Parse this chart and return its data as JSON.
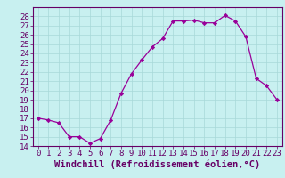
{
  "hours": [
    0,
    1,
    2,
    3,
    4,
    5,
    6,
    7,
    8,
    9,
    10,
    11,
    12,
    13,
    14,
    15,
    16,
    17,
    18,
    19,
    20,
    21,
    22,
    23
  ],
  "windchill": [
    17.0,
    16.8,
    16.5,
    15.0,
    15.0,
    14.3,
    14.8,
    16.8,
    19.7,
    21.8,
    23.3,
    24.7,
    25.6,
    27.5,
    27.5,
    27.6,
    27.3,
    27.3,
    28.1,
    27.5,
    25.8,
    21.3,
    20.5,
    19.0
  ],
  "line_color": "#990099",
  "marker": "D",
  "marker_size": 2.2,
  "bg_color": "#c8f0f0",
  "grid_color": "#a8d8d8",
  "spine_color": "#660066",
  "xlabel": "Windchill (Refroidissement éolien,°C)",
  "ylim": [
    14,
    29
  ],
  "yticks": [
    14,
    15,
    16,
    17,
    18,
    19,
    20,
    21,
    22,
    23,
    24,
    25,
    26,
    27,
    28
  ],
  "xticks": [
    0,
    1,
    2,
    3,
    4,
    5,
    6,
    7,
    8,
    9,
    10,
    11,
    12,
    13,
    14,
    15,
    16,
    17,
    18,
    19,
    20,
    21,
    22,
    23
  ],
  "tick_color": "#660066",
  "label_color": "#660066",
  "font_size": 6.5,
  "xlabel_fontsize": 7.5
}
